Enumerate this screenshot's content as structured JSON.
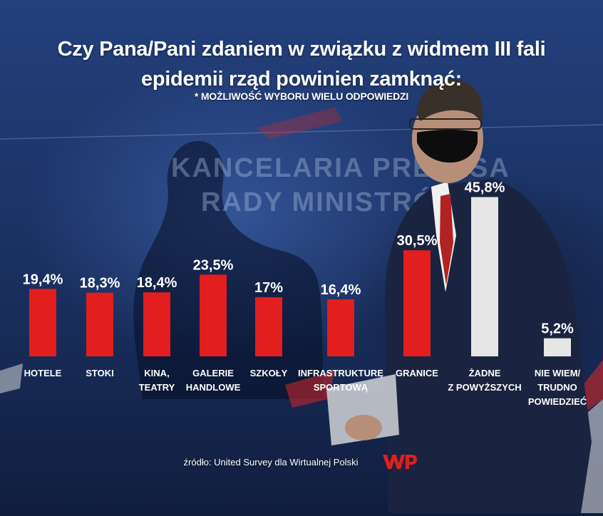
{
  "header": {
    "title_line_1": "Czy Pana/Pani zdaniem w związku z widmem III fali",
    "title_line_2": "epidemii rząd powinien zamknąć:",
    "subtitle": "* MOŻLIWOŚĆ WYBORU WIELU ODPOWIEDZI"
  },
  "backdrop_text": {
    "line_1": "KANCELARIA PREZESA",
    "line_2": "RADY MINISTRÓW"
  },
  "footer": {
    "source": "źródło: United Survey dla Wirtualnej Polski",
    "logo_text": "WP"
  },
  "colors": {
    "bar_red": "#e21e1e",
    "bar_white": "#e6e6e6",
    "text": "#ffffff"
  },
  "chart_data": {
    "type": "bar",
    "categories": [
      [
        "HOTELE"
      ],
      [
        "STOKI"
      ],
      [
        "KINA,",
        "TEATRY"
      ],
      [
        "GALERIE",
        "HANDLOWE"
      ],
      [
        "SZKOŁY"
      ],
      [
        "INFRASTRUKTURĘ",
        "SPORTOWĄ"
      ],
      [
        "GRANICE"
      ],
      [
        "ŻADNE",
        "Z POWYŻSZYCH"
      ],
      [
        "NIE WIEM/",
        "TRUDNO",
        "POWIEDZIEĆ"
      ]
    ],
    "values": [
      19.4,
      18.3,
      18.4,
      23.5,
      17,
      16.4,
      30.5,
      45.8,
      5.2
    ],
    "value_labels": [
      "19,4%",
      "18,3%",
      "18,4%",
      "23,5%",
      "17%",
      "16,4%",
      "30,5%",
      "45,8%",
      "5,2%"
    ],
    "bar_colors": [
      "#e21e1e",
      "#e21e1e",
      "#e21e1e",
      "#e21e1e",
      "#e21e1e",
      "#e21e1e",
      "#e21e1e",
      "#e6e6e6",
      "#e6e6e6"
    ],
    "title": "Czy Pana/Pani zdaniem w związku z widmem III fali epidemii rząd powinien zamknąć:",
    "subtitle": "* MOŻLIWOŚĆ WYBORU WIELU ODPOWIEDZI",
    "ylim": [
      0,
      50
    ],
    "grid": false,
    "legend": "none"
  }
}
